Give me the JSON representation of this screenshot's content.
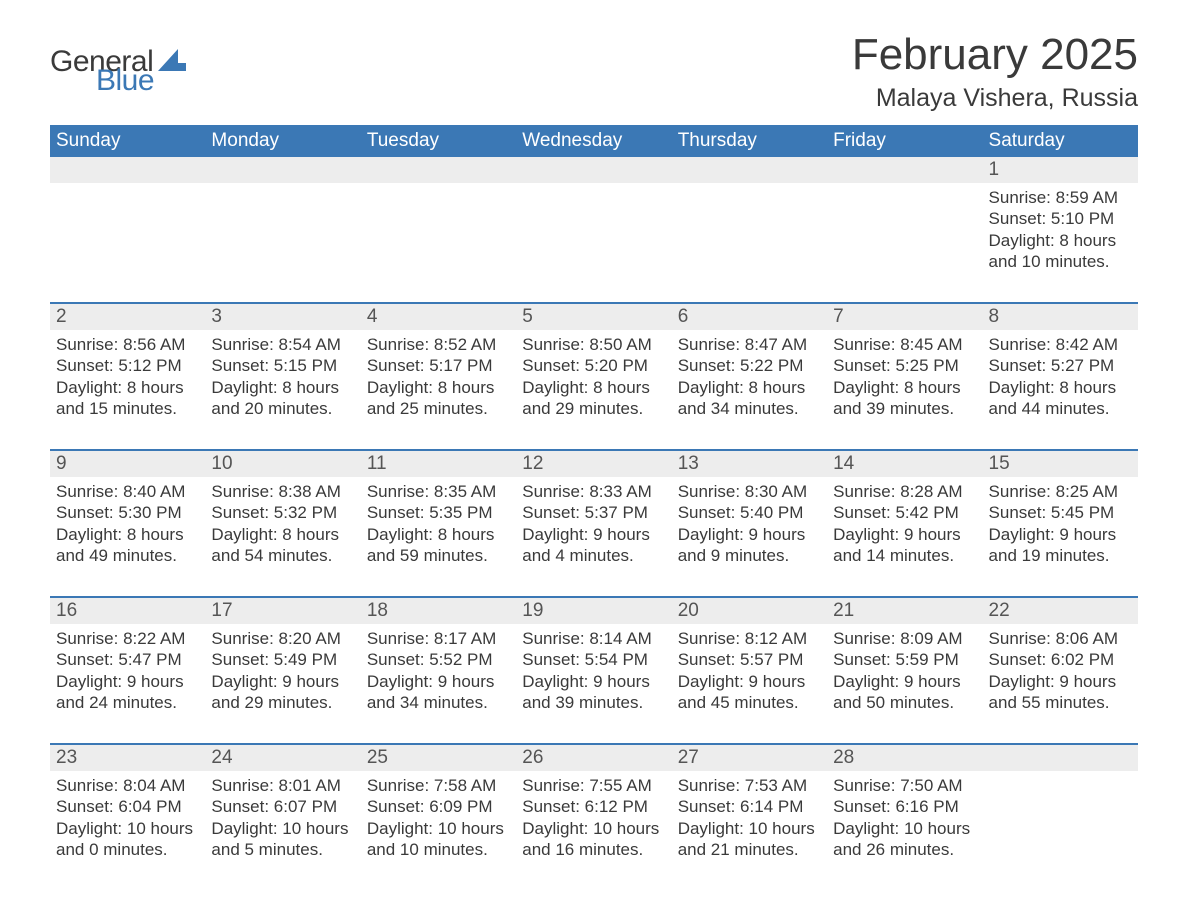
{
  "brand": {
    "word1": "General",
    "word2": "Blue",
    "accent_color": "#3b78b5"
  },
  "title": "February 2025",
  "location": "Malaya Vishera, Russia",
  "colors": {
    "header_bg": "#3b78b5",
    "header_text": "#ffffff",
    "row_alt_bg": "#ededed",
    "text": "#3a3a3a",
    "rule": "#3b78b5"
  },
  "day_headers": [
    "Sunday",
    "Monday",
    "Tuesday",
    "Wednesday",
    "Thursday",
    "Friday",
    "Saturday"
  ],
  "weeks": [
    [
      null,
      null,
      null,
      null,
      null,
      null,
      {
        "n": "1",
        "sr": "Sunrise: 8:59 AM",
        "ss": "Sunset: 5:10 PM",
        "d1": "Daylight: 8 hours",
        "d2": "and 10 minutes."
      }
    ],
    [
      {
        "n": "2",
        "sr": "Sunrise: 8:56 AM",
        "ss": "Sunset: 5:12 PM",
        "d1": "Daylight: 8 hours",
        "d2": "and 15 minutes."
      },
      {
        "n": "3",
        "sr": "Sunrise: 8:54 AM",
        "ss": "Sunset: 5:15 PM",
        "d1": "Daylight: 8 hours",
        "d2": "and 20 minutes."
      },
      {
        "n": "4",
        "sr": "Sunrise: 8:52 AM",
        "ss": "Sunset: 5:17 PM",
        "d1": "Daylight: 8 hours",
        "d2": "and 25 minutes."
      },
      {
        "n": "5",
        "sr": "Sunrise: 8:50 AM",
        "ss": "Sunset: 5:20 PM",
        "d1": "Daylight: 8 hours",
        "d2": "and 29 minutes."
      },
      {
        "n": "6",
        "sr": "Sunrise: 8:47 AM",
        "ss": "Sunset: 5:22 PM",
        "d1": "Daylight: 8 hours",
        "d2": "and 34 minutes."
      },
      {
        "n": "7",
        "sr": "Sunrise: 8:45 AM",
        "ss": "Sunset: 5:25 PM",
        "d1": "Daylight: 8 hours",
        "d2": "and 39 minutes."
      },
      {
        "n": "8",
        "sr": "Sunrise: 8:42 AM",
        "ss": "Sunset: 5:27 PM",
        "d1": "Daylight: 8 hours",
        "d2": "and 44 minutes."
      }
    ],
    [
      {
        "n": "9",
        "sr": "Sunrise: 8:40 AM",
        "ss": "Sunset: 5:30 PM",
        "d1": "Daylight: 8 hours",
        "d2": "and 49 minutes."
      },
      {
        "n": "10",
        "sr": "Sunrise: 8:38 AM",
        "ss": "Sunset: 5:32 PM",
        "d1": "Daylight: 8 hours",
        "d2": "and 54 minutes."
      },
      {
        "n": "11",
        "sr": "Sunrise: 8:35 AM",
        "ss": "Sunset: 5:35 PM",
        "d1": "Daylight: 8 hours",
        "d2": "and 59 minutes."
      },
      {
        "n": "12",
        "sr": "Sunrise: 8:33 AM",
        "ss": "Sunset: 5:37 PM",
        "d1": "Daylight: 9 hours",
        "d2": "and 4 minutes."
      },
      {
        "n": "13",
        "sr": "Sunrise: 8:30 AM",
        "ss": "Sunset: 5:40 PM",
        "d1": "Daylight: 9 hours",
        "d2": "and 9 minutes."
      },
      {
        "n": "14",
        "sr": "Sunrise: 8:28 AM",
        "ss": "Sunset: 5:42 PM",
        "d1": "Daylight: 9 hours",
        "d2": "and 14 minutes."
      },
      {
        "n": "15",
        "sr": "Sunrise: 8:25 AM",
        "ss": "Sunset: 5:45 PM",
        "d1": "Daylight: 9 hours",
        "d2": "and 19 minutes."
      }
    ],
    [
      {
        "n": "16",
        "sr": "Sunrise: 8:22 AM",
        "ss": "Sunset: 5:47 PM",
        "d1": "Daylight: 9 hours",
        "d2": "and 24 minutes."
      },
      {
        "n": "17",
        "sr": "Sunrise: 8:20 AM",
        "ss": "Sunset: 5:49 PM",
        "d1": "Daylight: 9 hours",
        "d2": "and 29 minutes."
      },
      {
        "n": "18",
        "sr": "Sunrise: 8:17 AM",
        "ss": "Sunset: 5:52 PM",
        "d1": "Daylight: 9 hours",
        "d2": "and 34 minutes."
      },
      {
        "n": "19",
        "sr": "Sunrise: 8:14 AM",
        "ss": "Sunset: 5:54 PM",
        "d1": "Daylight: 9 hours",
        "d2": "and 39 minutes."
      },
      {
        "n": "20",
        "sr": "Sunrise: 8:12 AM",
        "ss": "Sunset: 5:57 PM",
        "d1": "Daylight: 9 hours",
        "d2": "and 45 minutes."
      },
      {
        "n": "21",
        "sr": "Sunrise: 8:09 AM",
        "ss": "Sunset: 5:59 PM",
        "d1": "Daylight: 9 hours",
        "d2": "and 50 minutes."
      },
      {
        "n": "22",
        "sr": "Sunrise: 8:06 AM",
        "ss": "Sunset: 6:02 PM",
        "d1": "Daylight: 9 hours",
        "d2": "and 55 minutes."
      }
    ],
    [
      {
        "n": "23",
        "sr": "Sunrise: 8:04 AM",
        "ss": "Sunset: 6:04 PM",
        "d1": "Daylight: 10 hours",
        "d2": "and 0 minutes."
      },
      {
        "n": "24",
        "sr": "Sunrise: 8:01 AM",
        "ss": "Sunset: 6:07 PM",
        "d1": "Daylight: 10 hours",
        "d2": "and 5 minutes."
      },
      {
        "n": "25",
        "sr": "Sunrise: 7:58 AM",
        "ss": "Sunset: 6:09 PM",
        "d1": "Daylight: 10 hours",
        "d2": "and 10 minutes."
      },
      {
        "n": "26",
        "sr": "Sunrise: 7:55 AM",
        "ss": "Sunset: 6:12 PM",
        "d1": "Daylight: 10 hours",
        "d2": "and 16 minutes."
      },
      {
        "n": "27",
        "sr": "Sunrise: 7:53 AM",
        "ss": "Sunset: 6:14 PM",
        "d1": "Daylight: 10 hours",
        "d2": "and 21 minutes."
      },
      {
        "n": "28",
        "sr": "Sunrise: 7:50 AM",
        "ss": "Sunset: 6:16 PM",
        "d1": "Daylight: 10 hours",
        "d2": "and 26 minutes."
      },
      null
    ]
  ]
}
